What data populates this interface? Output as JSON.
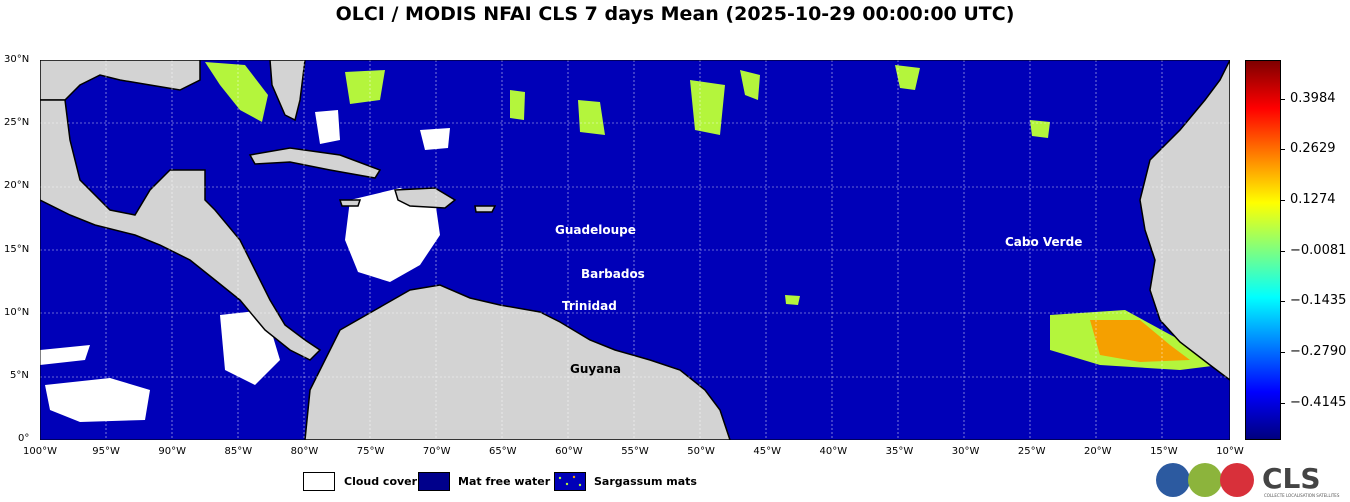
{
  "title": "OLCI / MODIS NFAI CLS 7 days Mean (2025-10-29 00:00:00 UTC)",
  "map": {
    "lat_ticks": [
      "30°N",
      "25°N",
      "20°N",
      "15°N",
      "10°N",
      "5°N",
      "0°"
    ],
    "lon_ticks": [
      "100°W",
      "95°W",
      "90°W",
      "85°W",
      "80°W",
      "75°W",
      "70°W",
      "65°W",
      "60°W",
      "55°W",
      "50°W",
      "45°W",
      "40°W",
      "35°W",
      "30°W",
      "25°W",
      "20°W",
      "15°W",
      "10°W"
    ],
    "lat_range": [
      0,
      30
    ],
    "lon_range": [
      -100,
      -10
    ],
    "place_labels": [
      {
        "name": "Guadeloupe",
        "color": "white"
      },
      {
        "name": "Barbados",
        "color": "white"
      },
      {
        "name": "Trinidad",
        "color": "white"
      },
      {
        "name": "Cabo Verde",
        "color": "white"
      },
      {
        "name": "Guyana",
        "color": "black"
      }
    ],
    "colors": {
      "ocean": "#0000b8",
      "land": "#d3d3d3",
      "cloud": "#ffffff",
      "sargassum_low": "#b4f53c",
      "sargassum_high": "#f5a000"
    }
  },
  "colorbar": {
    "ticks": [
      "0.3984",
      "0.2629",
      "0.1274",
      "−0.0081",
      "−0.1435",
      "−0.2790",
      "−0.4145"
    ],
    "range": [
      -0.48,
      0.48
    ],
    "colors": [
      "#00007f",
      "#0000ff",
      "#0080ff",
      "#00ffff",
      "#7fff7f",
      "#ffff00",
      "#ff8000",
      "#ff0000",
      "#7f0000"
    ]
  },
  "legend": {
    "items": [
      {
        "label": "Cloud cover",
        "color": "#ffffff"
      },
      {
        "label": "Mat free water",
        "color": "#00008b"
      },
      {
        "label": "Sargassum mats",
        "color": "#0000b8"
      }
    ]
  },
  "logo": {
    "text": "CLS",
    "subtitle": "COLLECTE LOCALISATION SATELLITES"
  }
}
